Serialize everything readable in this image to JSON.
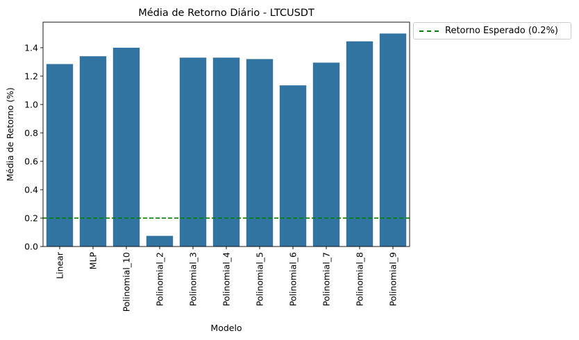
{
  "chart_data": {
    "type": "bar",
    "title": "Média de Retorno Diário - LTCUSDT",
    "xlabel": "Modelo",
    "ylabel": "Média de Retorno (%)",
    "categories": [
      "Linear",
      "MLP",
      "Polinomial_10",
      "Polinomial_2",
      "Polinomial_3",
      "Polinomial_4",
      "Polinomial_5",
      "Polinomial_6",
      "Polinomial_7",
      "Polinomial_8",
      "Polinomial_9"
    ],
    "values": [
      1.285,
      1.34,
      1.4,
      0.075,
      1.33,
      1.33,
      1.32,
      1.135,
      1.295,
      1.445,
      1.5
    ],
    "ylim": [
      0,
      1.58
    ],
    "yticks": [
      0.0,
      0.2,
      0.4,
      0.6,
      0.8,
      1.0,
      1.2,
      1.4
    ],
    "ytick_labels": [
      "0.0",
      "0.2",
      "0.4",
      "0.6",
      "0.8",
      "1.0",
      "1.2",
      "1.4"
    ],
    "bar_color": "#3274a1",
    "reference_line": {
      "value": 0.2,
      "label": "Retorno Esperado (0.2%)",
      "color": "#008000",
      "style": "dashed"
    },
    "legend": {
      "placement": "outside-top-right",
      "entries": [
        "Retorno Esperado (0.2%)"
      ]
    },
    "grid": false
  }
}
